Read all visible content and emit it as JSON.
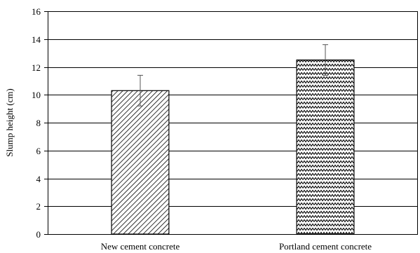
{
  "chart_data": {
    "type": "bar",
    "categories": [
      "New cement concrete",
      "Portland cement concrete"
    ],
    "values": [
      10.3,
      12.5
    ],
    "error": [
      1.1,
      1.1
    ],
    "ylabel": "Slump height (cm)",
    "xlabel": "",
    "ylim": [
      0,
      16
    ],
    "yticks": [
      0,
      2,
      4,
      6,
      8,
      10,
      12,
      14,
      16
    ],
    "grid": true,
    "patterns": [
      "diagonal-hatch",
      "zigzag-hatch"
    ]
  }
}
